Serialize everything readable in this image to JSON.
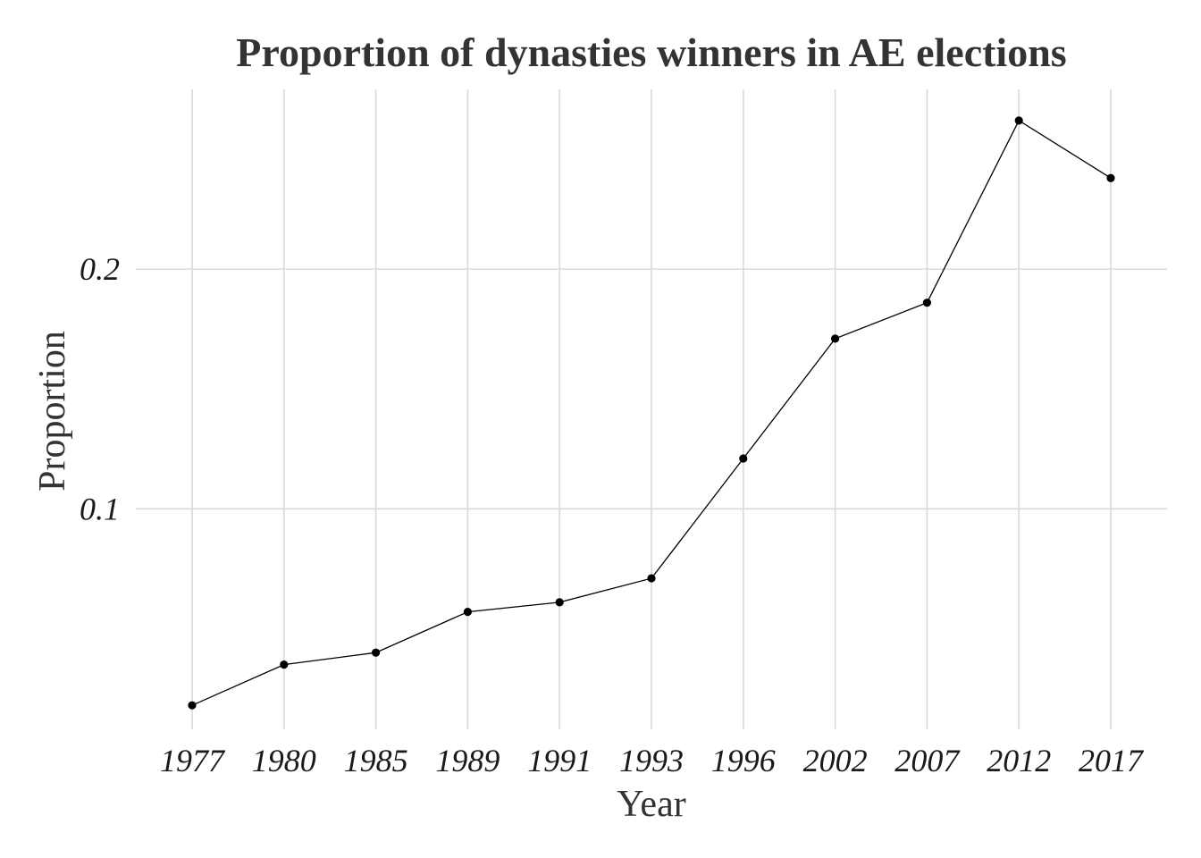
{
  "chart_data": {
    "type": "line",
    "title": "Proportion of dynasties winners in AE elections",
    "xlabel": "Year",
    "ylabel": "Proportion",
    "categories": [
      "1977",
      "1980",
      "1985",
      "1989",
      "1991",
      "1993",
      "1996",
      "2002",
      "2007",
      "2012",
      "2017"
    ],
    "values": [
      0.018,
      0.035,
      0.04,
      0.057,
      0.061,
      0.071,
      0.121,
      0.171,
      0.186,
      0.262,
      0.238
    ],
    "yticks": [
      0.1,
      0.2
    ],
    "ytick_labels": [
      "0.1",
      "0.2"
    ],
    "ylim": [
      0.008,
      0.275
    ],
    "grid": true,
    "legend": "none",
    "colors": {
      "line": "#000000",
      "point": "#000000",
      "grid": "#d9d9d9",
      "text": "#333333"
    }
  }
}
